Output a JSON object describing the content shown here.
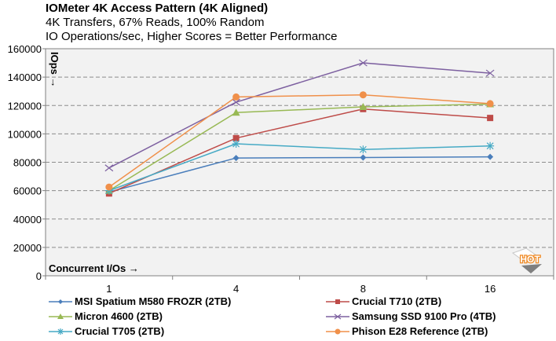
{
  "chart_data": {
    "type": "line",
    "title": "IOMeter 4K Access Pattern (4K Aligned)",
    "subtitle": "4K Transfers, 67% Reads, 100% Random",
    "subtitle2": "IO Operations/sec, Higher Scores = Better Performance",
    "xlabel": "Concurrent I/Os →",
    "ylabel": "IOps →",
    "categories": [
      "1",
      "4",
      "8",
      "16"
    ],
    "ylim": [
      0,
      160000
    ],
    "yticks": [
      0,
      20000,
      40000,
      60000,
      80000,
      100000,
      120000,
      140000,
      160000
    ],
    "ytick_labels": [
      "0",
      "20000",
      "40000",
      "60000",
      "80000",
      "100000",
      "120000",
      "140000",
      "160000"
    ],
    "grid": true,
    "legend_position": "bottom",
    "watermark": "HOT",
    "series": [
      {
        "name": "MSI Spatium M580 FROZR (2TB)",
        "color": "#4A7EBB",
        "marker": "diamond",
        "values": [
          59000,
          83000,
          83300,
          83800
        ]
      },
      {
        "name": "Crucial T710 (2TB)",
        "color": "#BE4B48",
        "marker": "square",
        "values": [
          58000,
          97000,
          117500,
          111200
        ]
      },
      {
        "name": "Micron 4600 (2TB)",
        "color": "#98B954",
        "marker": "triangle",
        "values": [
          60000,
          115000,
          119000,
          121000
        ]
      },
      {
        "name": "Samsung SSD 9100 Pro (4TB)",
        "color": "#7D60A0",
        "marker": "x",
        "values": [
          76000,
          122300,
          150000,
          142800
        ]
      },
      {
        "name": "Crucial T705 (2TB)",
        "color": "#46AAC5",
        "marker": "star",
        "values": [
          60000,
          93000,
          89000,
          91500
        ]
      },
      {
        "name": "Phison E28 Reference (2TB)",
        "color": "#F0904A",
        "marker": "circle",
        "values": [
          62500,
          126000,
          127500,
          121300
        ]
      }
    ]
  }
}
